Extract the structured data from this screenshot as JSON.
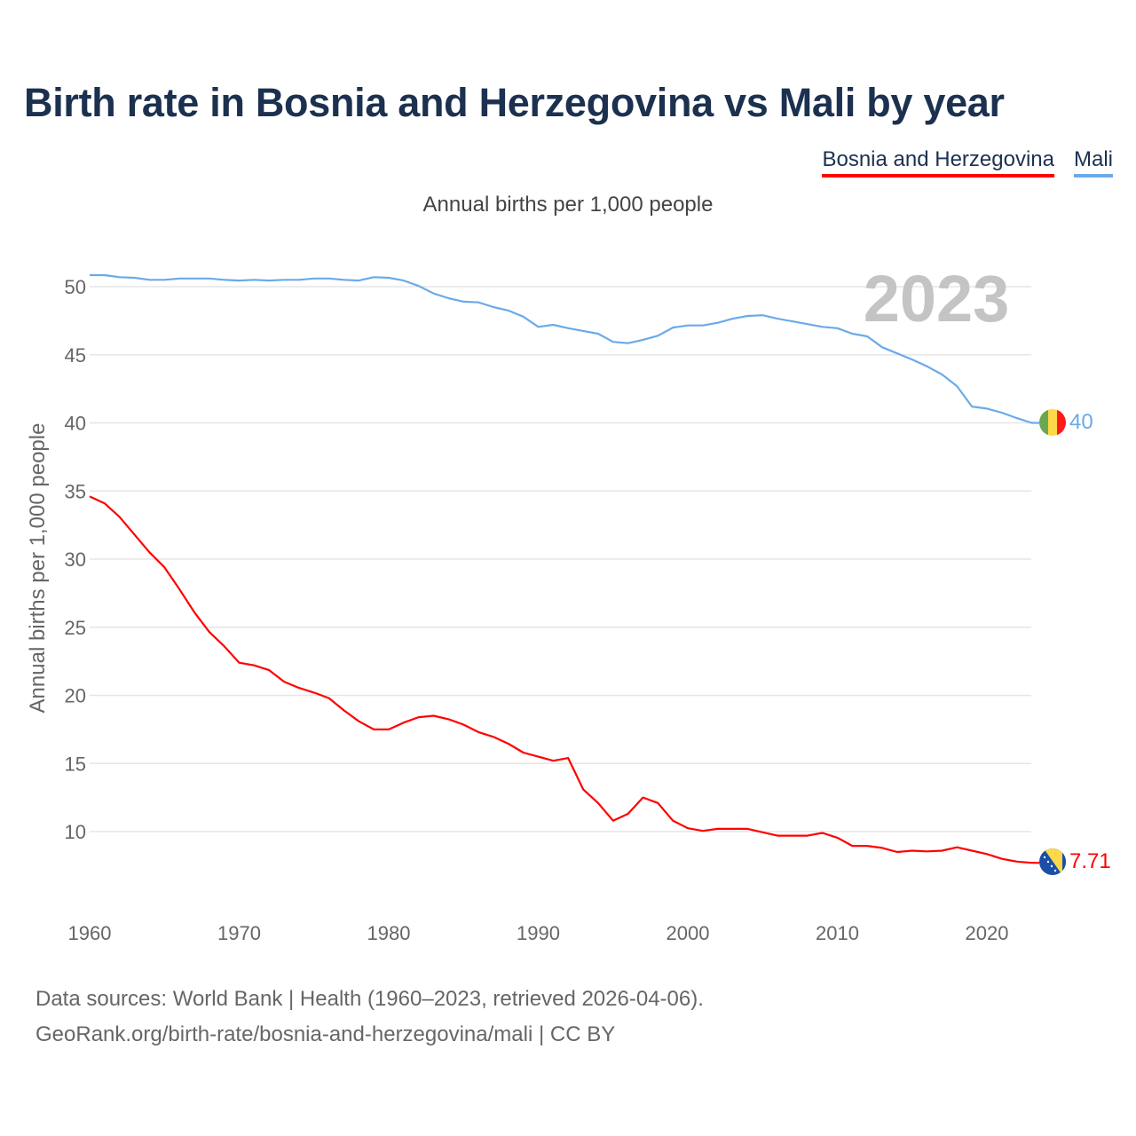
{
  "title": "Birth rate in Bosnia and Herzegovina vs Mali by year",
  "legend": [
    {
      "label": "Bosnia and Herzegovina",
      "color": "#ff0000"
    },
    {
      "label": "Mali",
      "color": "#6aaaea"
    }
  ],
  "subtitle": "Annual births per 1,000 people",
  "year_watermark": "2023",
  "footer": {
    "line1": "Data sources: World Bank | Health (1960–2023, retrieved 2026-04-06).",
    "line2": "GeoRank.org/birth-rate/bosnia-and-herzegovina/mali | CC BY"
  },
  "chart_data": {
    "type": "line",
    "title": "Birth rate in Bosnia and Herzegovina vs Mali by year",
    "ylabel": "Annual births per 1,000 people",
    "xlabel": "",
    "xlim": [
      1960,
      2023
    ],
    "ylim": [
      5,
      52
    ],
    "yticks": [
      10,
      15,
      20,
      25,
      30,
      35,
      40,
      45,
      50
    ],
    "xticks": [
      1960,
      1970,
      1980,
      1990,
      2000,
      2010,
      2020
    ],
    "grid": true,
    "legend_position": "top-right",
    "x_start": 1960,
    "series": [
      {
        "name": "Bosnia and Herzegovina",
        "color": "#ff0000",
        "end_label": "7.71",
        "flag": "bosnia-flag",
        "values": [
          34.6,
          34.1,
          33.1,
          31.8,
          30.5,
          29.4,
          27.8,
          26.1,
          24.65,
          23.6,
          22.4,
          22.2,
          21.85,
          21.0,
          20.55,
          20.2,
          19.8,
          18.9,
          18.1,
          17.5,
          17.5,
          18.0,
          18.4,
          18.5,
          18.25,
          17.85,
          17.3,
          16.95,
          16.45,
          15.8,
          15.5,
          15.2,
          15.4,
          13.1,
          12.1,
          10.8,
          11.3,
          12.5,
          12.1,
          10.8,
          10.25,
          10.05,
          10.2,
          10.2,
          10.2,
          9.95,
          9.7,
          9.7,
          9.7,
          9.9,
          9.55,
          8.95,
          8.95,
          8.8,
          8.5,
          8.6,
          8.55,
          8.6,
          8.85,
          8.6,
          8.35,
          8.0,
          7.8,
          7.71
        ]
      },
      {
        "name": "Mali",
        "color": "#6aaaea",
        "end_label": "40",
        "flag": "mali-flag",
        "values": [
          50.85,
          50.85,
          50.7,
          50.65,
          50.5,
          50.5,
          50.6,
          50.6,
          50.6,
          50.5,
          50.45,
          50.5,
          50.45,
          50.5,
          50.5,
          50.6,
          50.6,
          50.5,
          50.45,
          50.7,
          50.65,
          50.45,
          50.05,
          49.5,
          49.15,
          48.9,
          48.85,
          48.5,
          48.25,
          47.8,
          47.05,
          47.2,
          46.95,
          46.75,
          46.55,
          45.95,
          45.85,
          46.1,
          46.4,
          47.0,
          47.15,
          47.15,
          47.35,
          47.65,
          47.85,
          47.9,
          47.65,
          47.45,
          47.25,
          47.05,
          46.95,
          46.55,
          46.35,
          45.55,
          45.1,
          44.65,
          44.15,
          43.55,
          42.7,
          41.2,
          41.05,
          40.75,
          40.35,
          40.0
        ]
      }
    ]
  }
}
